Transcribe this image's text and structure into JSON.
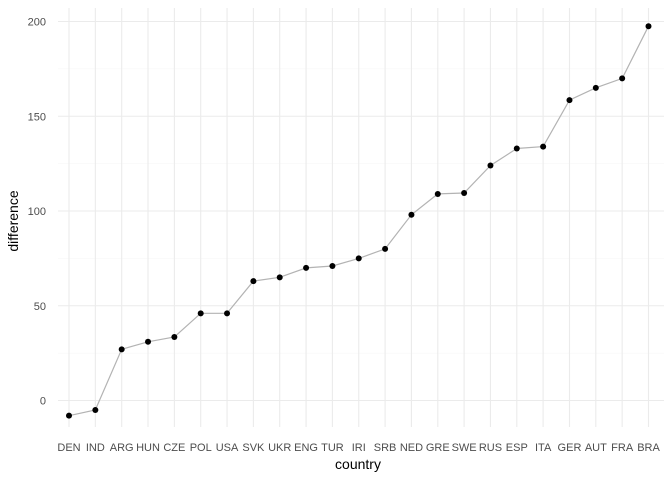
{
  "chart_data": {
    "type": "line",
    "title": "",
    "xlabel": "country",
    "ylabel": "difference",
    "categories": [
      "DEN",
      "IND",
      "ARG",
      "HUN",
      "CZE",
      "POL",
      "USA",
      "SVK",
      "UKR",
      "ENG",
      "TUR",
      "IRI",
      "SRB",
      "NED",
      "GRE",
      "SWE",
      "RUS",
      "ESP",
      "ITA",
      "GER",
      "AUT",
      "FRA",
      "BRA"
    ],
    "series": [
      {
        "name": "",
        "values": [
          -8,
          -5,
          27,
          31,
          33.5,
          46,
          46,
          63,
          65,
          70,
          71,
          75,
          80,
          98,
          109,
          109.5,
          124,
          133,
          134,
          158.5,
          165,
          170,
          197.5
        ],
        "line_color": "#b3b3b3",
        "point_color": "#000000"
      }
    ],
    "yticks": [
      0,
      50,
      100,
      150,
      200
    ],
    "ylim": [
      -16,
      206
    ],
    "grid": true,
    "legend": "none",
    "colors": {
      "grid_major": "#ebebeb",
      "grid_minor": "#f5f5f5",
      "tick_text": "#4d4d4d"
    }
  }
}
